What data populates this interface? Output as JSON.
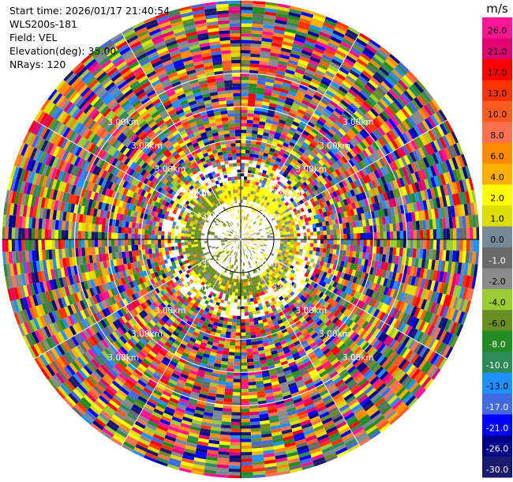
{
  "info": {
    "start_time": "Start time: 2026/01/17 21:40:54",
    "instrument": "WLS200s-181",
    "field": "Field: VEL",
    "elevation": "Elevation(deg): 35.00",
    "nrays": "NRays: 120"
  },
  "chart_data": {
    "type": "heatmap",
    "projection": "polar (PPI)",
    "title": "",
    "field": "VEL",
    "elevation_deg": 35.0,
    "n_rays": 120,
    "range_rings_km": [
      1,
      2,
      3,
      4,
      5
    ],
    "ring_label": "3.00km",
    "max_range_km": 7.2,
    "inner_clear_air_km": 1.4,
    "spokes_deg": [
      0,
      30,
      60,
      90,
      120,
      150,
      180,
      210,
      240,
      270,
      300,
      330
    ],
    "colorbar": {
      "unit": "m/s",
      "ticks": [
        26.0,
        21.0,
        17.0,
        13.0,
        10.0,
        8.0,
        6.0,
        4.0,
        2.0,
        1.0,
        0.0,
        -1.0,
        -2.0,
        -4.0,
        -6.0,
        -8.0,
        -10.0,
        -13.0,
        -17.0,
        -21.0,
        -26.0,
        -30.0
      ],
      "tick_labels": [
        "26.0",
        "21.0",
        "17.0",
        "13.0",
        "10.0",
        "8.0",
        "6.0",
        "4.0",
        "2.0",
        "1.0",
        "0.0",
        "-1.0",
        "-2.0",
        "-4.0",
        "-6.0",
        "-8.0",
        "-10.0",
        "-13.0",
        "-17.0",
        "-21.0",
        "-26.0",
        "-30.0"
      ],
      "colors": [
        "#FF1493",
        "#E00070",
        "#FF0000",
        "#FF3300",
        "#FF5A1F",
        "#FF7050",
        "#FF8C00",
        "#FFB000",
        "#FFFF00",
        "#DDDD00",
        "#778899",
        "#696969",
        "#8B8B8B",
        "#9ACD32",
        "#6B8E23",
        "#228B22",
        "#2E8B57",
        "#1E90FF",
        "#4169E1",
        "#0000FF",
        "#00008B",
        "#191970"
      ]
    }
  }
}
